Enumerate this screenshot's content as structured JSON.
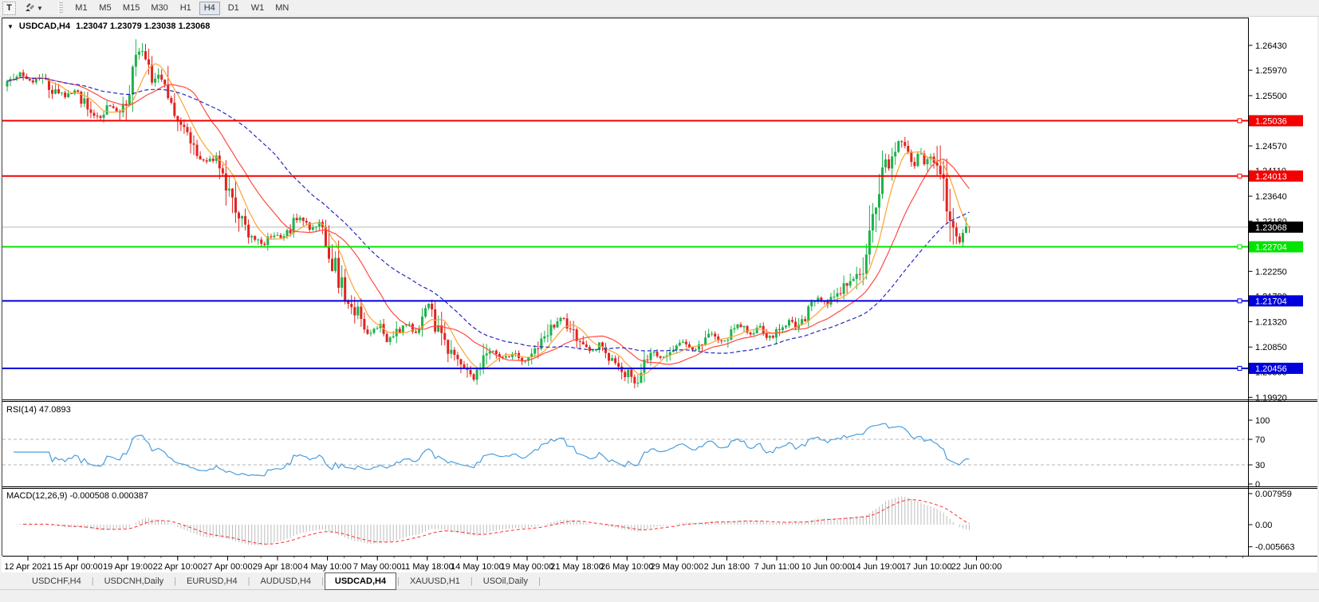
{
  "toolbar": {
    "text_tool": "T",
    "arrows_dropdown_caret": "▼",
    "timeframes": [
      "M1",
      "M5",
      "M15",
      "M30",
      "H1",
      "H4",
      "D1",
      "W1",
      "MN"
    ],
    "active_timeframe": "H4"
  },
  "chart_header": {
    "collapse_arrow": "▼",
    "symbol": "USDCAD,H4",
    "ohlc": "1.23047 1.23079 1.23038 1.23068"
  },
  "rsi_panel": {
    "label": "RSI(14) 47.0893"
  },
  "macd_panel": {
    "label": "MACD(12,26,9) -0.000508 0.000387"
  },
  "tabs": [
    "USDCHF,H4",
    "USDCNH,Daily",
    "EURUSD,H4",
    "AUDUSD,H4",
    "USDCAD,H4",
    "XAUUSD,H1",
    "USOil,Daily"
  ],
  "active_tab": "USDCAD,H4",
  "tabs_separator": "|",
  "colors": {
    "candle_up": "#1db24a",
    "candle_down": "#e02420",
    "ma_fast": "#ffa233",
    "ma_medium": "#ff4a42",
    "ma_slow": "#2427c9",
    "hline_red": "#f40000",
    "hline_green": "#00e400",
    "hline_blue": "#0000dc",
    "current_price_line": "#b8b8b8",
    "current_price_box": "#000000",
    "rsi_line": "#4a9ede",
    "rsi_levels": "#b4b4b4",
    "macd_hist": "#bcbcbc",
    "macd_signal": "#ff2a2a",
    "axis_text": "#000000"
  },
  "chart_data": {
    "type": "candlestick",
    "symbol": "USDCAD",
    "timeframe": "H4",
    "bars": 300,
    "ohlc_current": {
      "open": 1.23047,
      "high": 1.23079,
      "low": 1.23038,
      "close": 1.23068
    },
    "ylim": [
      1.1988,
      1.2693
    ],
    "price_ticks": [
      "1.26430",
      "1.25970",
      "1.25500",
      "1.25030",
      "1.24570",
      "1.24110",
      "1.23640",
      "1.23180",
      "1.22720",
      "1.22250",
      "1.21790",
      "1.21320",
      "1.20850",
      "1.20390",
      "1.19920"
    ],
    "time_labels": [
      "12 Apr 2021",
      "15 Apr 00:00",
      "19 Apr 19:00",
      "22 Apr 10:00",
      "27 Apr 00:00",
      "29 Apr 18:00",
      "4 May 10:00",
      "7 May 00:00",
      "11 May 18:00",
      "14 May 10:00",
      "19 May 00:00",
      "21 May 18:00",
      "26 May 10:00",
      "29 May 00:00",
      "2 Jun 18:00",
      "7 Jun 11:00",
      "10 Jun 00:00",
      "14 Jun 19:00",
      "17 Jun 10:00",
      "22 Jun 00:00"
    ],
    "hlines": [
      {
        "price": 1.25036,
        "label": "1.25036",
        "color": "#f40000"
      },
      {
        "price": 1.24013,
        "label": "1.24013",
        "color": "#f40000"
      },
      {
        "price": 1.22704,
        "label": "1.22704",
        "color": "#00e400"
      },
      {
        "price": 1.21704,
        "label": "1.21704",
        "color": "#0000dc"
      },
      {
        "price": 1.20456,
        "label": "1.20456",
        "color": "#0000dc"
      }
    ],
    "current_price": {
      "value": 1.23068,
      "label": "1.23068"
    },
    "moving_averages": [
      {
        "period": 8,
        "color": "#ffa233",
        "style": "solid"
      },
      {
        "period": 20,
        "color": "#ff4a42",
        "style": "solid"
      },
      {
        "period": 45,
        "color": "#2427c9",
        "style": "dashed"
      }
    ],
    "rsi": {
      "period": 14,
      "current": 47.0893,
      "color": "#4a9ede",
      "levels": [
        70,
        30
      ],
      "ticks": [
        {
          "v": 100,
          "label": "100"
        },
        {
          "v": 70,
          "label": "70"
        },
        {
          "v": 30,
          "label": "30"
        },
        {
          "v": 0,
          "label": "0"
        }
      ]
    },
    "macd": {
      "fast": 12,
      "slow": 26,
      "signal": 9,
      "current_macd": -0.000508,
      "current_signal": 0.000387,
      "hist_color": "#bcbcbc",
      "signal_color": "#ff2a2a",
      "ticks": [
        {
          "v": 0.007959,
          "label": "0.007959"
        },
        {
          "v": 0,
          "label": "0.00"
        },
        {
          "v": -0.005663,
          "label": "-0.005663"
        }
      ]
    },
    "price_path": [
      [
        0.0,
        1.257
      ],
      [
        0.012,
        1.2592
      ],
      [
        0.024,
        1.2576
      ],
      [
        0.036,
        1.2585
      ],
      [
        0.048,
        1.256
      ],
      [
        0.06,
        1.2548
      ],
      [
        0.072,
        1.2556
      ],
      [
        0.084,
        1.2528
      ],
      [
        0.096,
        1.251
      ],
      [
        0.106,
        1.2532
      ],
      [
        0.116,
        1.2516
      ],
      [
        0.126,
        1.256
      ],
      [
        0.134,
        1.2618
      ],
      [
        0.139,
        1.265
      ],
      [
        0.144,
        1.2612
      ],
      [
        0.15,
        1.2568
      ],
      [
        0.158,
        1.2588
      ],
      [
        0.166,
        1.2548
      ],
      [
        0.176,
        1.2495
      ],
      [
        0.186,
        1.2478
      ],
      [
        0.196,
        1.2445
      ],
      [
        0.206,
        1.2425
      ],
      [
        0.216,
        1.2435
      ],
      [
        0.226,
        1.2398
      ],
      [
        0.236,
        1.2352
      ],
      [
        0.246,
        1.2305
      ],
      [
        0.256,
        1.2288
      ],
      [
        0.266,
        1.2272
      ],
      [
        0.276,
        1.2296
      ],
      [
        0.286,
        1.2282
      ],
      [
        0.296,
        1.2312
      ],
      [
        0.306,
        1.2326
      ],
      [
        0.316,
        1.2302
      ],
      [
        0.326,
        1.2318
      ],
      [
        0.336,
        1.2256
      ],
      [
        0.346,
        1.2202
      ],
      [
        0.356,
        1.2162
      ],
      [
        0.366,
        1.2148
      ],
      [
        0.376,
        1.2108
      ],
      [
        0.386,
        1.2126
      ],
      [
        0.396,
        1.2096
      ],
      [
        0.406,
        1.2112
      ],
      [
        0.416,
        1.2126
      ],
      [
        0.426,
        1.2104
      ],
      [
        0.438,
        1.2168
      ],
      [
        0.446,
        1.2122
      ],
      [
        0.456,
        1.2082
      ],
      [
        0.466,
        1.2062
      ],
      [
        0.476,
        1.2042
      ],
      [
        0.486,
        1.2026
      ],
      [
        0.496,
        1.2066
      ],
      [
        0.506,
        1.208
      ],
      [
        0.516,
        1.2062
      ],
      [
        0.526,
        1.2076
      ],
      [
        0.536,
        1.2056
      ],
      [
        0.546,
        1.207
      ],
      [
        0.556,
        1.2092
      ],
      [
        0.566,
        1.2128
      ],
      [
        0.576,
        1.2142
      ],
      [
        0.586,
        1.2112
      ],
      [
        0.596,
        1.2092
      ],
      [
        0.606,
        1.2076
      ],
      [
        0.616,
        1.209
      ],
      [
        0.626,
        1.2062
      ],
      [
        0.636,
        1.2052
      ],
      [
        0.646,
        1.2032
      ],
      [
        0.654,
        1.2008
      ],
      [
        0.662,
        1.2056
      ],
      [
        0.672,
        1.2076
      ],
      [
        0.682,
        1.2062
      ],
      [
        0.692,
        1.2082
      ],
      [
        0.702,
        1.2096
      ],
      [
        0.712,
        1.2076
      ],
      [
        0.722,
        1.2092
      ],
      [
        0.732,
        1.2112
      ],
      [
        0.742,
        1.2092
      ],
      [
        0.752,
        1.2112
      ],
      [
        0.762,
        1.2126
      ],
      [
        0.772,
        1.2106
      ],
      [
        0.782,
        1.2122
      ],
      [
        0.792,
        1.2102
      ],
      [
        0.802,
        1.2116
      ],
      [
        0.812,
        1.2132
      ],
      [
        0.822,
        1.2122
      ],
      [
        0.832,
        1.2152
      ],
      [
        0.842,
        1.2176
      ],
      [
        0.852,
        1.2166
      ],
      [
        0.862,
        1.2186
      ],
      [
        0.872,
        1.2202
      ],
      [
        0.882,
        1.2218
      ],
      [
        0.89,
        1.2242
      ],
      [
        0.898,
        1.23
      ],
      [
        0.906,
        1.2366
      ],
      [
        0.914,
        1.242
      ],
      [
        0.922,
        1.2452
      ],
      [
        0.93,
        1.247
      ],
      [
        0.936,
        1.244
      ],
      [
        0.942,
        1.242
      ],
      [
        0.948,
        1.2446
      ],
      [
        0.954,
        1.2422
      ],
      [
        0.96,
        1.2442
      ],
      [
        0.966,
        1.2412
      ],
      [
        0.972,
        1.238
      ],
      [
        0.978,
        1.2338
      ],
      [
        0.984,
        1.2292
      ],
      [
        0.989,
        1.2272
      ],
      [
        0.994,
        1.2298
      ],
      [
        1.0,
        1.23068
      ]
    ]
  }
}
